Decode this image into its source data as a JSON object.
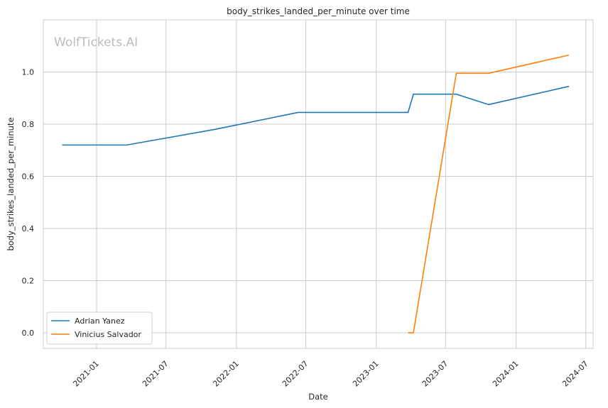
{
  "chart_data": {
    "type": "line",
    "title": "body_strikes_landed_per_minute over time",
    "xlabel": "Date",
    "ylabel": "body_strikes_landed_per_minute",
    "watermark": "WolfTickets.AI",
    "x_ticks": [
      "2021-01",
      "2021-07",
      "2022-01",
      "2022-07",
      "2023-01",
      "2023-07",
      "2024-01",
      "2024-07"
    ],
    "y_ticks": [
      "0.0",
      "0.2",
      "0.4",
      "0.6",
      "0.8",
      "1.0"
    ],
    "ylim": [
      -0.06,
      1.2
    ],
    "xlim": [
      "2020-08-15",
      "2024-07-20"
    ],
    "grid": true,
    "legend_position": "lower-left",
    "series": [
      {
        "name": "Adrian Yanez",
        "color": "#1f77b4",
        "points": [
          [
            "2020-10-03",
            0.72
          ],
          [
            "2021-03-20",
            0.72
          ],
          [
            "2021-11-06",
            0.78
          ],
          [
            "2022-06-11",
            0.845
          ],
          [
            "2023-03-25",
            0.845
          ],
          [
            "2023-04-08",
            0.915
          ],
          [
            "2023-07-29",
            0.915
          ],
          [
            "2023-10-21",
            0.875
          ],
          [
            "2024-05-18",
            0.945
          ]
        ]
      },
      {
        "name": "Vinicius Salvador",
        "color": "#ff7f0e",
        "points": [
          [
            "2023-03-25",
            0.0
          ],
          [
            "2023-04-08",
            0.0
          ],
          [
            "2023-07-29",
            0.995
          ],
          [
            "2023-10-21",
            0.995
          ],
          [
            "2024-05-18",
            1.065
          ]
        ]
      }
    ]
  }
}
